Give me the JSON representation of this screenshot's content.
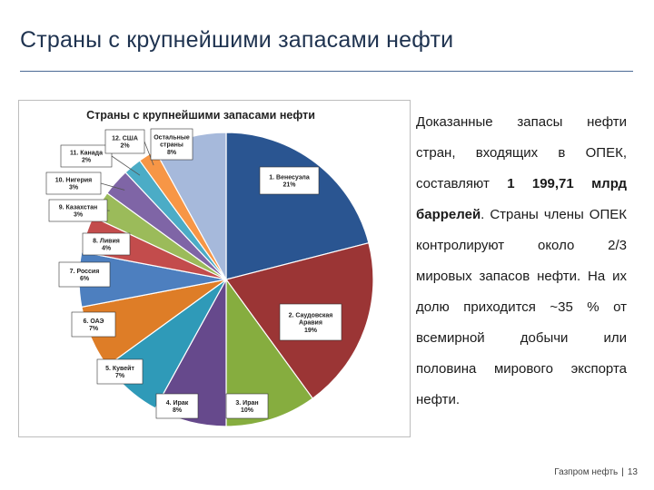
{
  "slide": {
    "title": "Страны с крупнейшими запасами нефти"
  },
  "text": {
    "part1": "Доказанные запасы нефти стран, входящих в ОПЕК, составляют ",
    "bold": "1 199,71 млрд баррелей",
    "part2": ". Страны члены ОПЕК контролируют около 2/3 мировых запасов нефти. На их долю приходится ~35 % от всемирной добычи или половина мирового экспорта нефти."
  },
  "footer": {
    "company": "Газпром нефть",
    "page": "13"
  },
  "chart_data": {
    "type": "pie",
    "title": "Страны с крупнейшими запасами нефти",
    "start_angle_deg": 0,
    "direction": "clockwise",
    "slices": [
      {
        "label": "1. Венесуэла",
        "value": 21,
        "display": "21%",
        "color": "#2a5591"
      },
      {
        "label": "2. Саудовская Аравия",
        "value": 19,
        "display": "19%",
        "color": "#9b3535"
      },
      {
        "label": "3. Иран",
        "value": 10,
        "display": "10%",
        "color": "#86ad3f"
      },
      {
        "label": "4. Ирак",
        "value": 8,
        "display": "8%",
        "color": "#66498c"
      },
      {
        "label": "5. Кувейт",
        "value": 7,
        "display": "7%",
        "color": "#2f9ab8"
      },
      {
        "label": "6. ОАЭ",
        "value": 7,
        "display": "7%",
        "color": "#de7d27"
      },
      {
        "label": "7. Россия",
        "value": 6,
        "display": "6%",
        "color": "#4d7fbf"
      },
      {
        "label": "8. Ливия",
        "value": 4,
        "display": "4%",
        "color": "#c34c4c"
      },
      {
        "label": "9. Казахстан",
        "value": 3,
        "display": "3%",
        "color": "#9bbb5a"
      },
      {
        "label": "10. Нигерия",
        "value": 3,
        "display": "3%",
        "color": "#7f65a6"
      },
      {
        "label": "11. Канада",
        "value": 2,
        "display": "2%",
        "color": "#4bacc6"
      },
      {
        "label": "12. США",
        "value": 2,
        "display": "2%",
        "color": "#f79646"
      },
      {
        "label": "Остальные страны",
        "value": 8,
        "display": "8%",
        "color": "#a6b9db"
      }
    ]
  }
}
